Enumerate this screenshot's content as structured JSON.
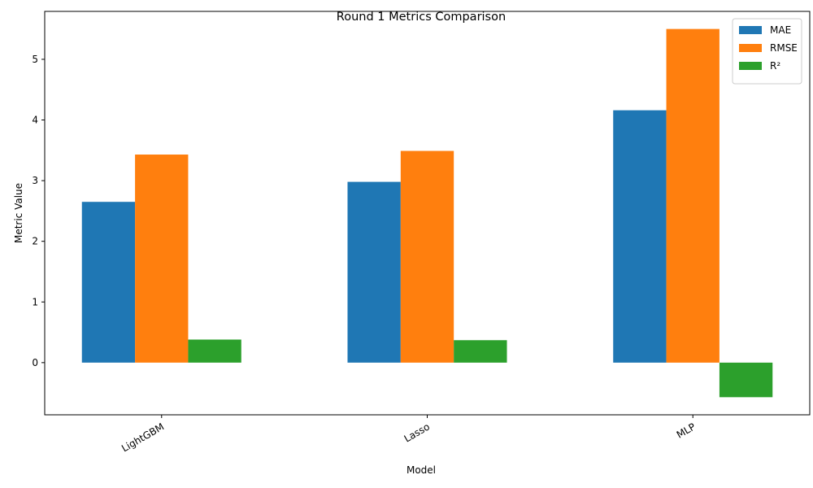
{
  "chart_data": {
    "type": "bar",
    "title": "Round 1 Metrics Comparison",
    "xlabel": "Model",
    "ylabel": "Metric Value",
    "categories": [
      "LightGBM",
      "Lasso",
      "MLP"
    ],
    "series": [
      {
        "name": "MAE",
        "color": "#1f77b4",
        "values": [
          2.65,
          2.98,
          4.16
        ]
      },
      {
        "name": "RMSE",
        "color": "#ff7f0e",
        "values": [
          3.43,
          3.49,
          5.5
        ]
      },
      {
        "name": "R²",
        "color": "#2ca02c",
        "values": [
          0.38,
          0.37,
          -0.57
        ]
      }
    ],
    "yticks": [
      0,
      1,
      2,
      3,
      4,
      5
    ],
    "ylim": [
      -0.86,
      5.79
    ],
    "grid": false,
    "legend_position": "top-right"
  }
}
